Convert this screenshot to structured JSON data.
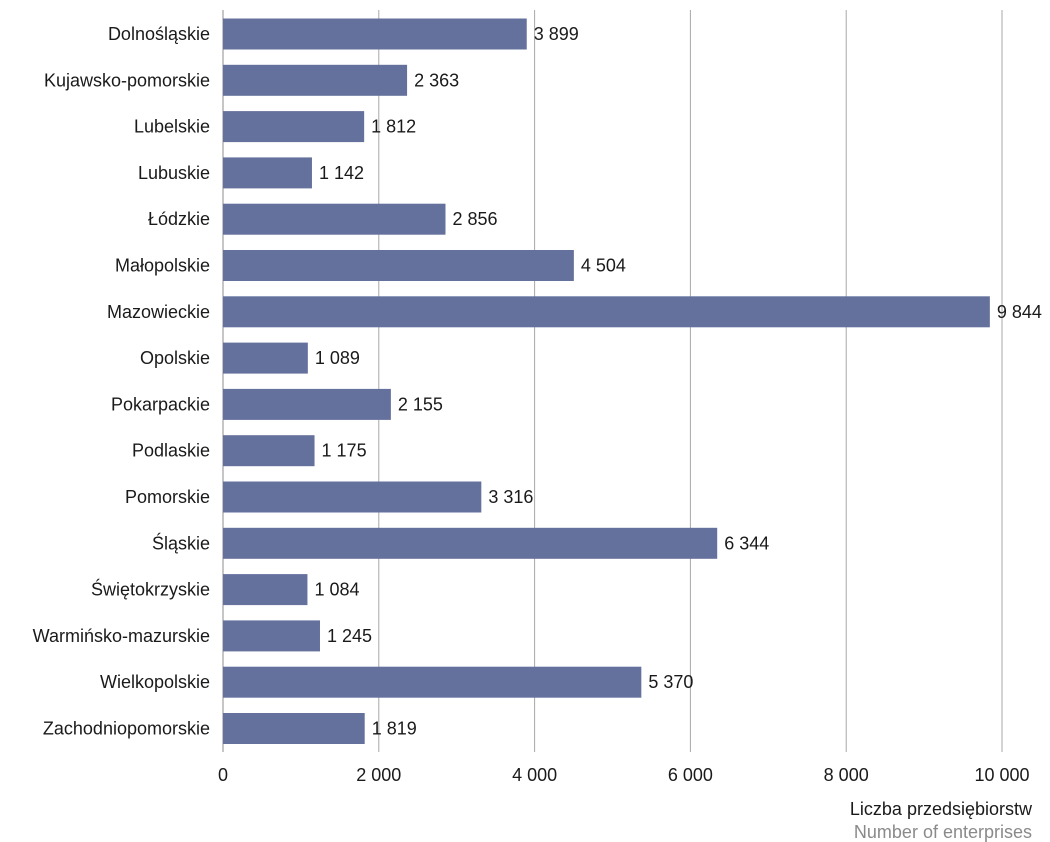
{
  "chart_data": {
    "type": "bar",
    "orientation": "horizontal",
    "categories": [
      "Dolnośląskie",
      "Kujawsko-pomorskie",
      "Lubelskie",
      "Lubuskie",
      "Łódzkie",
      "Małopolskie",
      "Mazowieckie",
      "Opolskie",
      "Pokarpackie",
      "Podlaskie",
      "Pomorskie",
      "Śląskie",
      "Świętokrzyskie",
      "Warmińsko-mazurskie",
      "Wielkopolskie",
      "Zachodniopomorskie"
    ],
    "values": [
      3899,
      2363,
      1812,
      1142,
      2856,
      4504,
      9844,
      1089,
      2155,
      1175,
      3316,
      6344,
      1084,
      1245,
      5370,
      1819
    ],
    "value_labels": [
      "3 899",
      "2 363",
      "1 812",
      "1 142",
      "2 856",
      "4 504",
      "9 844",
      "1 089",
      "2 155",
      "1 175",
      "3 316",
      "6 344",
      "1 084",
      "1 245",
      "5 370",
      "1 819"
    ],
    "xlim": [
      0,
      10000
    ],
    "x_ticks": [
      0,
      2000,
      4000,
      6000,
      8000,
      10000
    ],
    "x_tick_labels": [
      "0",
      "2 000",
      "4 000",
      "6 000",
      "8 000",
      "10 000"
    ],
    "xlabel": "Liczba przedsiębiorstw",
    "xlabel_secondary": "Number of enterprises",
    "grid": "vertical",
    "colors": {
      "bar": "#65719d",
      "grid": "#a8a8a8",
      "axis": "#8c8c8c"
    }
  }
}
